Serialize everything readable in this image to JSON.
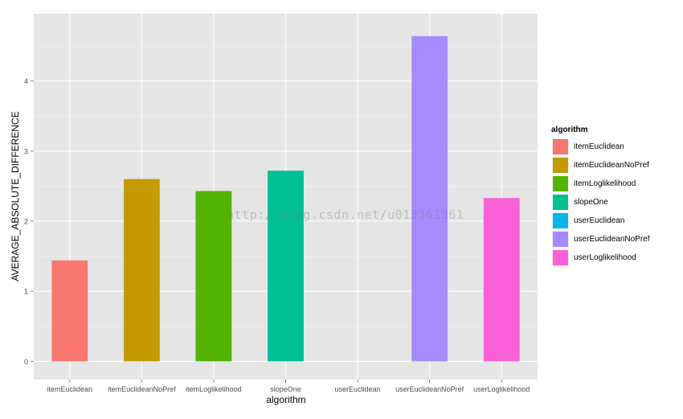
{
  "chart_data": {
    "type": "bar",
    "xlabel": "algorithm",
    "ylabel": "AVERAGE_ABSOLUTE_DIFFERENCE",
    "categories": [
      "itemEuclidean",
      "itemEuclideanNoPref",
      "itemLoglikelihood",
      "slopeOne",
      "userEuclidean",
      "userEuclideanNoPref",
      "userLoglikelihood"
    ],
    "values": [
      1.44,
      2.6,
      2.43,
      2.72,
      0.0,
      4.64,
      2.33
    ],
    "colors": [
      "#F8766D",
      "#C49A00",
      "#53B400",
      "#00C094",
      "#00B6EB",
      "#A58AFF",
      "#FB61D7"
    ],
    "ylim": [
      -0.26,
      4.96
    ],
    "yticks": [
      "0",
      "1",
      "2",
      "3",
      "4"
    ],
    "grid": true,
    "legend_position": "right",
    "legend_title": "algorithm",
    "legend_entries": [
      "itemEuclidean",
      "itemEuclideanNoPref",
      "itemLoglikelihood",
      "slopeOne",
      "userEuclidean",
      "userEuclideanNoPref",
      "userLoglikelihood"
    ]
  },
  "watermark": "http://blog.csdn.net/u013361361"
}
